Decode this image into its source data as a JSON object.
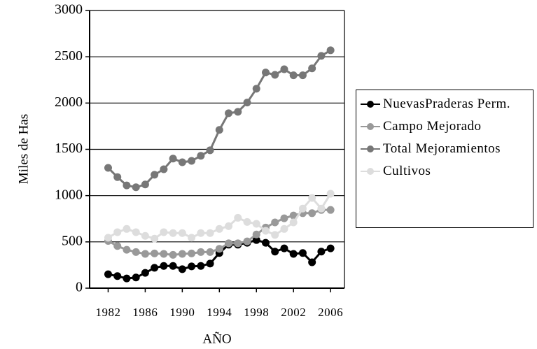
{
  "chart_data": {
    "type": "line",
    "x_label": "AÑO",
    "y_label": "Miles de Has",
    "x": [
      1982,
      1983,
      1984,
      1985,
      1986,
      1987,
      1988,
      1989,
      1990,
      1991,
      1992,
      1993,
      1994,
      1995,
      1996,
      1997,
      1998,
      1999,
      2000,
      2001,
      2002,
      2003,
      2004,
      2005,
      2006
    ],
    "series": [
      {
        "name": "NuevasPraderas Perm.",
        "color": "#000000",
        "values": [
          150,
          130,
          105,
          115,
          165,
          220,
          240,
          240,
          205,
          235,
          240,
          265,
          380,
          470,
          470,
          490,
          520,
          490,
          395,
          430,
          370,
          380,
          280,
          395,
          430
        ]
      },
      {
        "name": "Campo Mejorado",
        "color": "#999999",
        "values": [
          510,
          455,
          415,
          390,
          370,
          375,
          370,
          360,
          370,
          375,
          390,
          390,
          425,
          485,
          485,
          505,
          580,
          655,
          710,
          755,
          785,
          810,
          810,
          845,
          845
        ]
      },
      {
        "name": "Total Mejoramientos",
        "color": "#777777",
        "values": [
          1300,
          1200,
          1110,
          1090,
          1120,
          1225,
          1285,
          1400,
          1360,
          1375,
          1430,
          1490,
          1710,
          1890,
          1905,
          2005,
          2155,
          2330,
          2305,
          2365,
          2300,
          2300,
          2375,
          2510,
          2570
        ]
      },
      {
        "name": "Cultivos",
        "color": "#dddddd",
        "values": [
          545,
          605,
          640,
          605,
          565,
          535,
          605,
          595,
          595,
          545,
          595,
          595,
          640,
          670,
          760,
          715,
          695,
          620,
          575,
          640,
          710,
          860,
          975,
          860,
          1020
        ]
      }
    ],
    "xlim": [
      1980,
      2007.5
    ],
    "xticks": [
      1982,
      1986,
      1990,
      1994,
      1998,
      2002,
      2006
    ],
    "ylim": [
      0,
      3000
    ],
    "yticks": [
      0,
      500,
      1000,
      1500,
      2000,
      2500,
      3000
    ],
    "grid": true
  }
}
